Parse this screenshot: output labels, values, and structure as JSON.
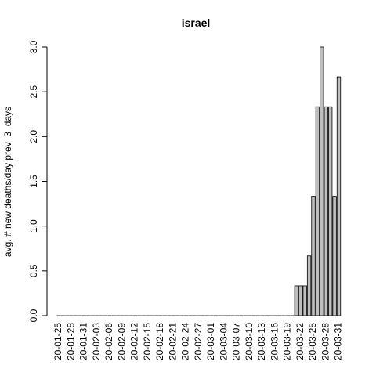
{
  "chart_data": {
    "type": "bar",
    "title": "israel",
    "ylabel": "avg. # new deaths/day prev  3  days",
    "categories": [
      "20-01-25",
      null,
      null,
      "20-01-28",
      null,
      null,
      "20-01-31",
      null,
      null,
      "20-02-03",
      null,
      null,
      "20-02-06",
      null,
      null,
      "20-02-09",
      null,
      null,
      "20-02-12",
      null,
      null,
      "20-02-15",
      null,
      null,
      "20-02-18",
      null,
      null,
      "20-02-21",
      null,
      null,
      "20-02-24",
      null,
      null,
      "20-02-27",
      null,
      null,
      "20-03-01",
      null,
      null,
      "20-03-04",
      null,
      null,
      "20-03-07",
      null,
      null,
      "20-03-10",
      null,
      null,
      "20-03-13",
      null,
      null,
      "20-03-16",
      null,
      null,
      "20-03-19",
      null,
      null,
      "20-03-22",
      null,
      null,
      "20-03-25",
      null,
      null,
      "20-03-28",
      null,
      null,
      "20-03-31"
    ],
    "values": [
      0,
      0,
      0,
      0,
      0,
      0,
      0,
      0,
      0,
      0,
      0,
      0,
      0,
      0,
      0,
      0,
      0,
      0,
      0,
      0,
      0,
      0,
      0,
      0,
      0,
      0,
      0,
      0,
      0,
      0,
      0,
      0,
      0,
      0,
      0,
      0,
      0,
      0,
      0,
      0,
      0,
      0,
      0,
      0,
      0,
      0,
      0,
      0,
      0,
      0,
      0,
      0,
      0,
      0,
      0,
      0,
      0.333,
      0.333,
      0.333,
      0.667,
      1.333,
      2.333,
      3.0,
      2.333,
      2.333,
      1.333,
      2.667
    ],
    "color": "#bebebe",
    "ylim": [
      0,
      3
    ],
    "yticks": [
      {
        "value": 0,
        "label": "0.0"
      },
      0.5,
      {
        "value": 1,
        "label": "1.0"
      },
      1.5,
      {
        "value": 2,
        "label": "2.0"
      },
      2.5,
      {
        "value": 3,
        "label": "3.0"
      }
    ]
  }
}
